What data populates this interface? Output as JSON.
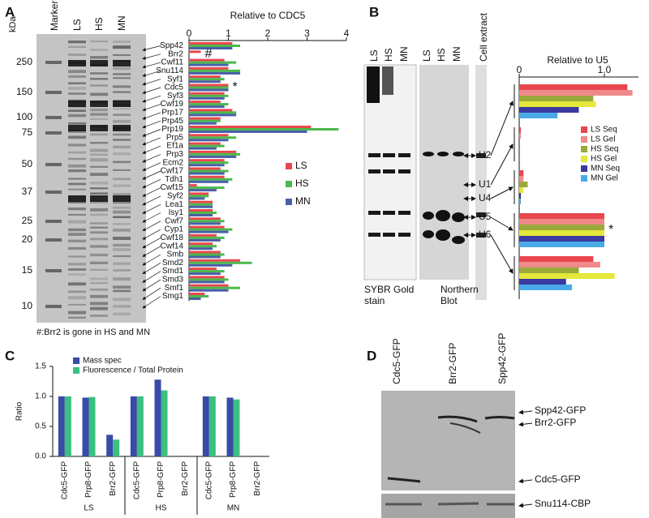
{
  "panel_labels": [
    "A",
    "B",
    "C",
    "D"
  ],
  "gel_a": {
    "unit": "kDa",
    "lanes": [
      "Marker",
      "LS",
      "HS",
      "MN"
    ],
    "markers": [
      250,
      150,
      100,
      75,
      50,
      37,
      25,
      20,
      15,
      10
    ],
    "note": "#:Brr2 is gone in HS and MN"
  },
  "gel_b": {
    "lanes": [
      "LS",
      "HS",
      "MN",
      "LS",
      "HS",
      "MN",
      "Cell extract"
    ],
    "captions": [
      [
        "SYBR Gold",
        "stain"
      ],
      [
        "Northern",
        "Blot"
      ]
    ]
  },
  "blot_d": {
    "lanes": [
      "Cdc5-GFP",
      "Brr2-GFP",
      "Spp42-GFP"
    ],
    "bands": [
      "Spp42-GFP",
      "Brr2-GFP",
      "Cdc5-GFP",
      "Snu114-CBP"
    ]
  },
  "chart_data": [
    {
      "type": "bar",
      "orientation": "horizontal",
      "title": "Relative to CDC5",
      "categories": [
        "Spp42",
        "Brr2",
        "Cwf11",
        "Snu114",
        "Syf1",
        "Cdc5",
        "Syf3",
        "Cwf19",
        "Prp17",
        "Prp45",
        "Prp19",
        "Prp5",
        "Ef1a",
        "Prp3",
        "Ecm2",
        "Cwf17",
        "Tdh1",
        "Cwf15",
        "Syf2",
        "Lea1",
        "Isy1",
        "Cwf7",
        "Cyp1",
        "Cwf18",
        "Cwf14",
        "Smb",
        "Smd2",
        "Smd1",
        "Smd3",
        "Smf1",
        "Smg1"
      ],
      "category_marks": [
        null,
        "#",
        null,
        null,
        null,
        "*",
        null,
        null,
        null,
        null,
        null,
        null,
        null,
        null,
        null,
        null,
        null,
        null,
        null,
        null,
        null,
        null,
        null,
        null,
        null,
        null,
        null,
        null,
        null,
        null,
        null
      ],
      "series": [
        {
          "name": "LS",
          "color": "#e8474d",
          "values": [
            1.1,
            0.3,
            0.9,
            1.0,
            0.8,
            1.0,
            0.9,
            0.8,
            1.1,
            0.8,
            3.1,
            1.0,
            0.8,
            1.2,
            0.9,
            0.8,
            0.9,
            0.2,
            0.5,
            0.6,
            0.6,
            0.8,
            0.9,
            0.7,
            0.6,
            0.8,
            1.3,
            0.7,
            0.9,
            1.0,
            0.4
          ]
        },
        {
          "name": "HS",
          "color": "#4cb84c",
          "values": [
            1.3,
            0,
            1.2,
            1.3,
            0.9,
            1.0,
            1.0,
            1.0,
            1.2,
            0.8,
            3.8,
            1.2,
            0.9,
            1.3,
            1.0,
            1.0,
            1.1,
            0.9,
            0.5,
            0.6,
            0.7,
            0.9,
            1.1,
            0.9,
            0.7,
            0.9,
            1.6,
            0.9,
            1.0,
            1.3,
            0.5
          ]
        },
        {
          "name": "MN",
          "color": "#4a5fa8",
          "values": [
            1.1,
            0,
            1.0,
            1.3,
            0.8,
            1.0,
            0.9,
            0.9,
            1.2,
            0.7,
            3.0,
            1.0,
            0.7,
            1.2,
            0.9,
            0.9,
            1.0,
            0.7,
            0.4,
            0.6,
            0.6,
            0.8,
            1.0,
            0.8,
            0.6,
            0.8,
            1.1,
            0.8,
            0.9,
            1.0,
            0.3
          ]
        }
      ],
      "xlim": [
        0,
        4
      ],
      "xticks": [
        0,
        1,
        2,
        3,
        4
      ],
      "legend": "right"
    },
    {
      "type": "bar",
      "orientation": "horizontal",
      "title": "Relative to U5",
      "categories": [
        "U2",
        "U1",
        "U4",
        "U5",
        "U6"
      ],
      "category_marks": [
        null,
        null,
        null,
        "*",
        null
      ],
      "series": [
        {
          "name": "LS Seq",
          "color": "#e8474d",
          "values": [
            1.27,
            0.02,
            0.05,
            1.0,
            0.87
          ]
        },
        {
          "name": "LS Gel",
          "color": "#f08a8a",
          "values": [
            1.33,
            0.02,
            0.05,
            1.0,
            0.95
          ]
        },
        {
          "name": "HS Seq",
          "color": "#9aaa3a",
          "values": [
            0.87,
            0,
            0.1,
            1.0,
            0.7
          ]
        },
        {
          "name": "HS Gel",
          "color": "#e3e83a",
          "values": [
            0.9,
            0,
            0.05,
            1.0,
            1.12
          ]
        },
        {
          "name": "MN Seq",
          "color": "#3a3aa0",
          "values": [
            0.7,
            0,
            0.02,
            1.0,
            0.55
          ]
        },
        {
          "name": "MN Gel",
          "color": "#4aaae8",
          "values": [
            0.45,
            0.01,
            0.02,
            1.0,
            0.62
          ]
        }
      ],
      "xlim": [
        0,
        1.4
      ],
      "xticks": [
        0,
        {
          "value": 1,
          "label": "1.0"
        }
      ],
      "legend": "right"
    },
    {
      "type": "bar",
      "orientation": "vertical",
      "ylabel": "Ratio",
      "categories": [
        "Cdc5-GFP",
        "Prp8-GFP",
        "Brr2-GFP",
        "Cdc5-GFP",
        "Prp8-GFP",
        "Brr2-GFP",
        "Cdc5-GFP",
        "Prp8-GFP",
        "Brr2-GFP"
      ],
      "groups": [
        "LS",
        "HS",
        "MN"
      ],
      "series": [
        {
          "name": "Mass spec",
          "color": "#3a4aa8",
          "values": [
            1.0,
            0.98,
            0.36,
            1.0,
            1.28,
            null,
            1.0,
            0.98,
            null
          ]
        },
        {
          "name": "Fluorescence / Total Protein",
          "color": "#3ac080",
          "values": [
            1.0,
            0.99,
            0.28,
            1.0,
            1.1,
            null,
            1.0,
            0.95,
            null
          ]
        }
      ],
      "ylim": [
        0,
        1.5
      ],
      "yticks": [
        {
          "value": 0,
          "label": "0.0"
        },
        {
          "value": 0.5,
          "label": "0.5"
        },
        {
          "value": 1,
          "label": "1.0"
        },
        {
          "value": 1.5,
          "label": "1.5"
        }
      ],
      "legend": "top-left"
    }
  ]
}
